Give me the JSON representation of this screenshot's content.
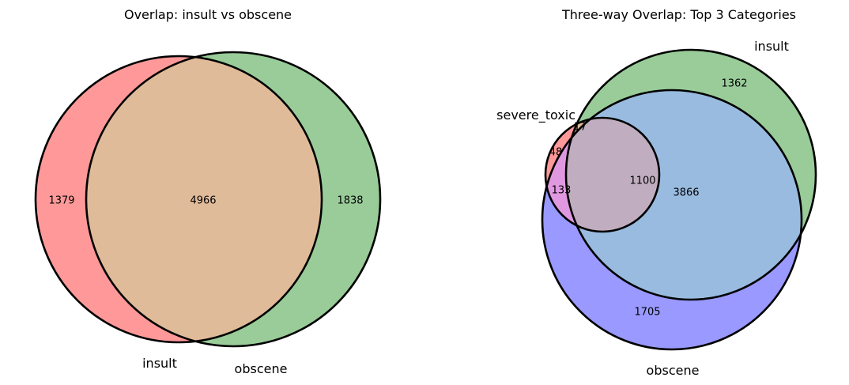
{
  "colors": {
    "set_a": "#ff9999",
    "set_b": "#99cc99",
    "set_c": "#9999ff",
    "ab_overlap": "#e0bb99",
    "ac_overlap": "#e099e0",
    "bc_overlap": "#99bbe0",
    "abc_overlap": "#c0aec0",
    "outline": "#000000"
  },
  "chart_data": [
    {
      "type": "venn2",
      "title": "Overlap: insult vs obscene",
      "sets": [
        "insult",
        "obscene"
      ],
      "regions": {
        "only_insult": 1379,
        "insult_and_obscene": 4966,
        "only_obscene": 1838
      }
    },
    {
      "type": "venn3",
      "title": "Three-way Overlap: Top 3 Categories",
      "sets": [
        "severe_toxic",
        "insult",
        "obscene"
      ],
      "regions": {
        "only_severe_toxic": 48,
        "only_insult": 1362,
        "only_obscene": 1705,
        "severe_toxic_and_insult_only": 17,
        "severe_toxic_and_obscene_only": 133,
        "insult_and_obscene_only": 3866,
        "all_three": 1100
      }
    }
  ]
}
